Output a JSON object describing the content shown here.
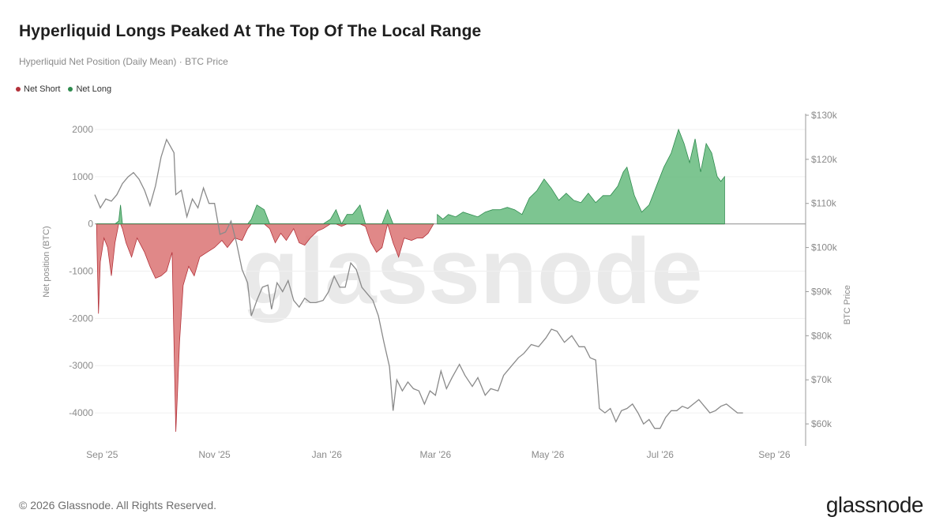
{
  "page": {
    "title": "Hyperliquid Longs Peaked At The Top Of The Local Range",
    "subtitle": "Hyperliquid Net Position (Daily Mean) · BTC Price",
    "copyright": "© 2026 Glassnode. All Rights Reserved.",
    "brand": "glassnode",
    "watermark": "glassnode"
  },
  "legend": [
    {
      "label": "Net Short",
      "color": "#b3323a"
    },
    {
      "label": "Net Long",
      "color": "#2e8b4e"
    }
  ],
  "chart_data": {
    "type": "area",
    "x_ticks": [
      "Sep '25",
      "Nov '25",
      "Jan '26",
      "Mar '26",
      "May '26",
      "Jul '26",
      "Sep '26"
    ],
    "x_tick_dates": [
      "2025-09-01",
      "2025-11-01",
      "2026-01-01",
      "2026-03-01",
      "2026-05-01",
      "2026-07-01",
      "2026-09-01"
    ],
    "x_range": [
      "2025-08-28",
      "2026-09-18"
    ],
    "ylabel_left": "Net position (BTC)",
    "ylim_left": [
      -4700,
      2300
    ],
    "y_ticks_left": [
      2000,
      1000,
      0,
      -1000,
      -2000,
      -3000,
      -4000
    ],
    "ylabel_right": "BTC Price",
    "ylim_right": [
      55000,
      130000
    ],
    "y_ticks_right": [
      130000,
      120000,
      110000,
      100000,
      90000,
      80000,
      70000,
      60000
    ],
    "y_tick_labels_right": [
      "$130k",
      "$120k",
      "$110k",
      "$100k",
      "$90k",
      "$80k",
      "$70k",
      "$60k"
    ],
    "positive_color": "#2e8b4e",
    "negative_color": "#b3323a",
    "positive_fill": "#6fbf85",
    "negative_fill": "#dd7b7b",
    "price_color": "#8a8a8a",
    "series": [
      {
        "name": "Net Short",
        "type": "area",
        "points": [
          [
            "2025-08-29",
            -100
          ],
          [
            "2025-08-30",
            -1900
          ],
          [
            "2025-08-31",
            -800
          ],
          [
            "2025-09-02",
            -300
          ],
          [
            "2025-09-04",
            -500
          ],
          [
            "2025-09-06",
            -1100
          ],
          [
            "2025-09-08",
            -400
          ],
          [
            "2025-09-10",
            60
          ],
          [
            "2025-09-11",
            400
          ],
          [
            "2025-09-12",
            -100
          ],
          [
            "2025-09-14",
            -400
          ],
          [
            "2025-09-17",
            -700
          ],
          [
            "2025-09-20",
            -300
          ],
          [
            "2025-09-24",
            -600
          ],
          [
            "2025-09-27",
            -900
          ],
          [
            "2025-09-30",
            -1150
          ],
          [
            "2025-10-03",
            -1100
          ],
          [
            "2025-10-06",
            -1000
          ],
          [
            "2025-10-09",
            -600
          ],
          [
            "2025-10-11",
            -4400
          ],
          [
            "2025-10-12",
            -3500
          ],
          [
            "2025-10-13",
            -2500
          ],
          [
            "2025-10-15",
            -1300
          ],
          [
            "2025-10-18",
            -900
          ],
          [
            "2025-10-21",
            -1100
          ],
          [
            "2025-10-24",
            -700
          ],
          [
            "2025-10-28",
            -600
          ],
          [
            "2025-11-01",
            -500
          ],
          [
            "2025-11-05",
            -350
          ],
          [
            "2025-11-08",
            -500
          ],
          [
            "2025-11-12",
            -300
          ],
          [
            "2025-11-16",
            -350
          ],
          [
            "2025-11-19",
            -100
          ],
          [
            "2025-11-21",
            100
          ],
          [
            "2025-11-24",
            400
          ],
          [
            "2025-11-28",
            300
          ],
          [
            "2025-12-01",
            -100
          ],
          [
            "2025-12-04",
            -400
          ],
          [
            "2025-12-07",
            -200
          ],
          [
            "2025-12-10",
            -350
          ],
          [
            "2025-12-14",
            -100
          ],
          [
            "2025-12-17",
            -400
          ],
          [
            "2025-12-20",
            -450
          ],
          [
            "2025-12-23",
            -300
          ],
          [
            "2025-12-27",
            -150
          ],
          [
            "2025-12-30",
            -100
          ],
          [
            "2026-01-03",
            100
          ],
          [
            "2026-01-06",
            300
          ],
          [
            "2026-01-09",
            -50
          ],
          [
            "2026-01-12",
            200
          ],
          [
            "2026-01-15",
            200
          ],
          [
            "2026-01-19",
            400
          ],
          [
            "2026-01-22",
            -50
          ],
          [
            "2026-01-25",
            -400
          ],
          [
            "2026-01-28",
            -600
          ],
          [
            "2026-01-31",
            -500
          ],
          [
            "2026-02-03",
            300
          ],
          [
            "2026-02-06",
            -400
          ],
          [
            "2026-02-09",
            -700
          ],
          [
            "2026-02-12",
            -300
          ],
          [
            "2026-02-16",
            -350
          ],
          [
            "2026-02-19",
            -300
          ],
          [
            "2026-02-22",
            -300
          ],
          [
            "2026-02-25",
            -200
          ],
          [
            "2026-02-28",
            0
          ]
        ]
      },
      {
        "name": "Net Long",
        "type": "area",
        "points": [
          [
            "2026-03-02",
            200
          ],
          [
            "2026-03-05",
            100
          ],
          [
            "2026-03-08",
            200
          ],
          [
            "2026-03-12",
            150
          ],
          [
            "2026-03-16",
            250
          ],
          [
            "2026-03-20",
            200
          ],
          [
            "2026-03-24",
            150
          ],
          [
            "2026-03-28",
            250
          ],
          [
            "2026-04-01",
            300
          ],
          [
            "2026-04-05",
            300
          ],
          [
            "2026-04-09",
            350
          ],
          [
            "2026-04-13",
            300
          ],
          [
            "2026-04-17",
            200
          ],
          [
            "2026-04-21",
            550
          ],
          [
            "2026-04-25",
            700
          ],
          [
            "2026-04-29",
            950
          ],
          [
            "2026-05-03",
            750
          ],
          [
            "2026-05-07",
            500
          ],
          [
            "2026-05-11",
            650
          ],
          [
            "2026-05-15",
            500
          ],
          [
            "2026-05-19",
            450
          ],
          [
            "2026-05-23",
            650
          ],
          [
            "2026-05-27",
            450
          ],
          [
            "2026-05-31",
            600
          ],
          [
            "2026-06-04",
            600
          ],
          [
            "2026-06-08",
            800
          ],
          [
            "2026-06-11",
            1100
          ],
          [
            "2026-06-13",
            1200
          ],
          [
            "2026-06-17",
            600
          ],
          [
            "2026-06-21",
            250
          ],
          [
            "2026-06-25",
            400
          ],
          [
            "2026-06-29",
            800
          ],
          [
            "2026-07-03",
            1200
          ],
          [
            "2026-07-07",
            1500
          ],
          [
            "2026-07-11",
            2000
          ],
          [
            "2026-07-14",
            1700
          ],
          [
            "2026-07-17",
            1300
          ],
          [
            "2026-07-20",
            1800
          ],
          [
            "2026-07-23",
            1100
          ],
          [
            "2026-07-26",
            1700
          ],
          [
            "2026-07-29",
            1500
          ],
          [
            "2026-08-01",
            1000
          ],
          [
            "2026-08-03",
            900
          ],
          [
            "2026-08-05",
            1000
          ]
        ]
      },
      {
        "name": "BTC Price",
        "type": "line",
        "axis": "right",
        "points": [
          [
            "2025-08-28",
            112000
          ],
          [
            "2025-08-31",
            109000
          ],
          [
            "2025-09-03",
            111000
          ],
          [
            "2025-09-06",
            110500
          ],
          [
            "2025-09-09",
            112000
          ],
          [
            "2025-09-12",
            114500
          ],
          [
            "2025-09-15",
            116000
          ],
          [
            "2025-09-18",
            117000
          ],
          [
            "2025-09-21",
            115500
          ],
          [
            "2025-09-24",
            113000
          ],
          [
            "2025-09-27",
            109500
          ],
          [
            "2025-09-30",
            114000
          ],
          [
            "2025-10-03",
            120500
          ],
          [
            "2025-10-06",
            124500
          ],
          [
            "2025-10-08",
            123000
          ],
          [
            "2025-10-10",
            121500
          ],
          [
            "2025-10-11",
            112000
          ],
          [
            "2025-10-14",
            113000
          ],
          [
            "2025-10-17",
            107000
          ],
          [
            "2025-10-20",
            111000
          ],
          [
            "2025-10-23",
            109000
          ],
          [
            "2025-10-26",
            113500
          ],
          [
            "2025-10-29",
            110000
          ],
          [
            "2025-11-01",
            110000
          ],
          [
            "2025-11-04",
            103000
          ],
          [
            "2025-11-07",
            103500
          ],
          [
            "2025-11-10",
            106000
          ],
          [
            "2025-11-13",
            101000
          ],
          [
            "2025-11-16",
            95000
          ],
          [
            "2025-11-19",
            92000
          ],
          [
            "2025-11-21",
            84500
          ],
          [
            "2025-11-24",
            88000
          ],
          [
            "2025-11-27",
            91000
          ],
          [
            "2025-11-30",
            91500
          ],
          [
            "2025-12-02",
            86000
          ],
          [
            "2025-12-05",
            92000
          ],
          [
            "2025-12-08",
            90000
          ],
          [
            "2025-12-11",
            92500
          ],
          [
            "2025-12-14",
            88000
          ],
          [
            "2025-12-17",
            86500
          ],
          [
            "2025-12-20",
            88500
          ],
          [
            "2025-12-23",
            87500
          ],
          [
            "2025-12-26",
            87500
          ],
          [
            "2025-12-30",
            88000
          ],
          [
            "2026-01-02",
            90000
          ],
          [
            "2026-01-05",
            93500
          ],
          [
            "2026-01-08",
            91000
          ],
          [
            "2026-01-11",
            91000
          ],
          [
            "2026-01-14",
            96500
          ],
          [
            "2026-01-17",
            95000
          ],
          [
            "2026-01-20",
            91000
          ],
          [
            "2026-01-23",
            89500
          ],
          [
            "2026-01-26",
            88000
          ],
          [
            "2026-01-29",
            84500
          ],
          [
            "2026-02-01",
            78500
          ],
          [
            "2026-02-04",
            73000
          ],
          [
            "2026-02-06",
            63000
          ],
          [
            "2026-02-08",
            70000
          ],
          [
            "2026-02-11",
            67500
          ],
          [
            "2026-02-14",
            69500
          ],
          [
            "2026-02-17",
            68000
          ],
          [
            "2026-02-20",
            67500
          ],
          [
            "2026-02-23",
            64500
          ],
          [
            "2026-02-26",
            67500
          ],
          [
            "2026-03-01",
            66500
          ],
          [
            "2026-03-04",
            72000
          ],
          [
            "2026-03-07",
            68000
          ],
          [
            "2026-03-10",
            70500
          ],
          [
            "2026-03-14",
            73500
          ],
          [
            "2026-03-17",
            71000
          ],
          [
            "2026-03-21",
            68500
          ],
          [
            "2026-03-24",
            70500
          ],
          [
            "2026-03-28",
            66500
          ],
          [
            "2026-03-31",
            68000
          ],
          [
            "2026-04-04",
            67500
          ],
          [
            "2026-04-07",
            71000
          ],
          [
            "2026-04-11",
            73000
          ],
          [
            "2026-04-15",
            75000
          ],
          [
            "2026-04-18",
            76000
          ],
          [
            "2026-04-22",
            78000
          ],
          [
            "2026-04-26",
            77500
          ],
          [
            "2026-04-30",
            79500
          ],
          [
            "2026-05-03",
            81500
          ],
          [
            "2026-05-06",
            81000
          ],
          [
            "2026-05-10",
            78500
          ],
          [
            "2026-05-14",
            80000
          ],
          [
            "2026-05-18",
            77500
          ],
          [
            "2026-05-21",
            77500
          ],
          [
            "2026-05-24",
            75000
          ],
          [
            "2026-05-27",
            74500
          ],
          [
            "2026-05-29",
            63500
          ],
          [
            "2026-06-01",
            62500
          ],
          [
            "2026-06-04",
            63500
          ],
          [
            "2026-06-07",
            60500
          ],
          [
            "2026-06-10",
            63000
          ],
          [
            "2026-06-13",
            63500
          ],
          [
            "2026-06-16",
            64500
          ],
          [
            "2026-06-19",
            62500
          ],
          [
            "2026-06-22",
            60000
          ],
          [
            "2026-06-25",
            61000
          ],
          [
            "2026-06-28",
            59000
          ],
          [
            "2026-07-01",
            59000
          ],
          [
            "2026-07-04",
            61500
          ],
          [
            "2026-07-07",
            63000
          ],
          [
            "2026-07-10",
            63000
          ],
          [
            "2026-07-13",
            64000
          ],
          [
            "2026-07-16",
            63500
          ],
          [
            "2026-07-19",
            64500
          ],
          [
            "2026-07-22",
            65500
          ],
          [
            "2026-07-25",
            64000
          ],
          [
            "2026-07-28",
            62500
          ],
          [
            "2026-07-31",
            63000
          ],
          [
            "2026-08-03",
            64000
          ],
          [
            "2026-08-06",
            64500
          ],
          [
            "2026-08-09",
            63500
          ],
          [
            "2026-08-12",
            62500
          ],
          [
            "2026-08-15",
            62500
          ]
        ]
      }
    ]
  }
}
